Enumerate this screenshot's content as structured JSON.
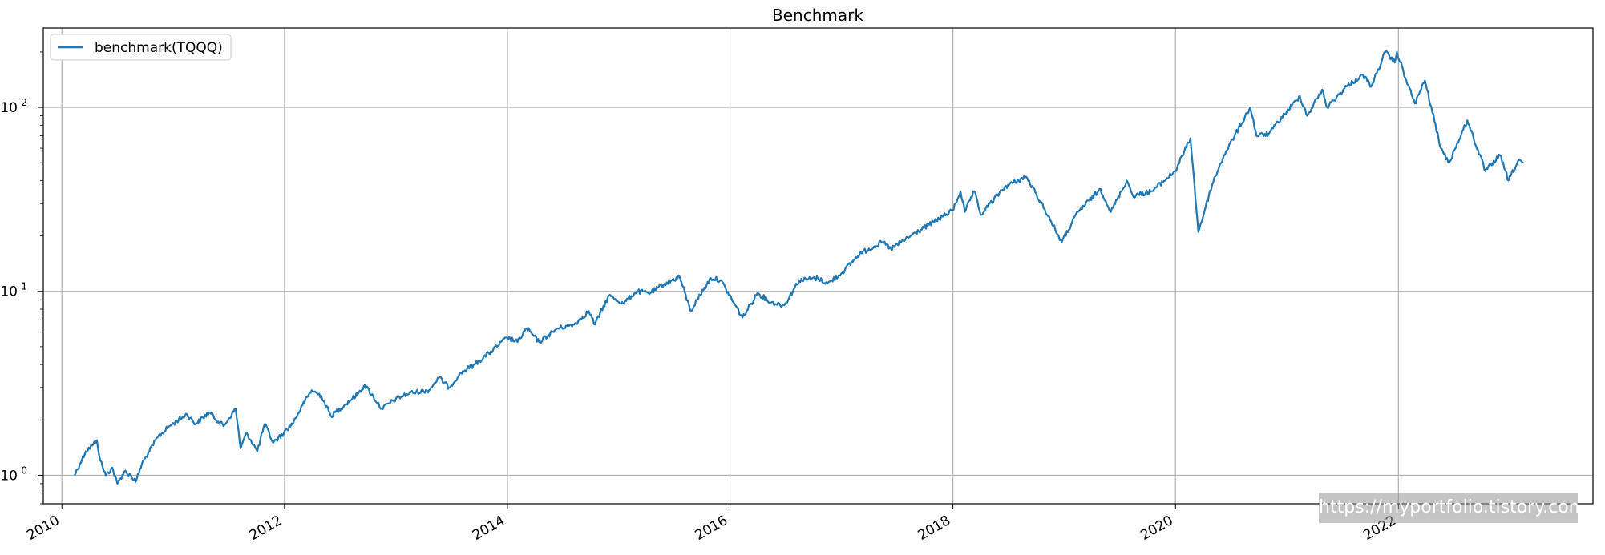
{
  "chart_data": {
    "type": "line",
    "title": "Benchmark",
    "xlabel": "",
    "ylabel": "",
    "y_scale": "log",
    "ylim": [
      0.7,
      270
    ],
    "xlim": [
      "2009-11-01",
      "2023-10-01"
    ],
    "grid": true,
    "legend_position": "top-left",
    "x_tick_labels": [
      "2010",
      "2012",
      "2014",
      "2016",
      "2018",
      "2020",
      "2022"
    ],
    "y_ticks": [
      1,
      10,
      100
    ],
    "y_tick_labels": [
      {
        "base": "10",
        "exp": "0"
      },
      {
        "base": "10",
        "exp": "1"
      },
      {
        "base": "10",
        "exp": "2"
      }
    ],
    "series": [
      {
        "name": "benchmark(TQQQ)",
        "color": "#1f77b4",
        "points": [
          [
            "2010-02-11",
            1.0
          ],
          [
            "2010-03-01",
            1.15
          ],
          [
            "2010-03-20",
            1.35
          ],
          [
            "2010-04-10",
            1.45
          ],
          [
            "2010-04-26",
            1.55
          ],
          [
            "2010-05-07",
            1.2
          ],
          [
            "2010-05-25",
            1.0
          ],
          [
            "2010-06-15",
            1.1
          ],
          [
            "2010-07-02",
            0.9
          ],
          [
            "2010-07-25",
            1.05
          ],
          [
            "2010-08-15",
            1.0
          ],
          [
            "2010-08-31",
            0.92
          ],
          [
            "2010-09-20",
            1.15
          ],
          [
            "2010-10-15",
            1.35
          ],
          [
            "2010-11-10",
            1.6
          ],
          [
            "2010-12-20",
            1.85
          ],
          [
            "2011-02-15",
            2.15
          ],
          [
            "2011-03-16",
            1.9
          ],
          [
            "2011-04-29",
            2.2
          ],
          [
            "2011-06-15",
            1.85
          ],
          [
            "2011-07-25",
            2.3
          ],
          [
            "2011-08-10",
            1.4
          ],
          [
            "2011-08-30",
            1.7
          ],
          [
            "2011-10-04",
            1.35
          ],
          [
            "2011-10-28",
            1.9
          ],
          [
            "2011-11-25",
            1.5
          ],
          [
            "2011-12-30",
            1.7
          ],
          [
            "2012-01-31",
            1.95
          ],
          [
            "2012-02-29",
            2.4
          ],
          [
            "2012-03-30",
            2.9
          ],
          [
            "2012-05-01",
            2.7
          ],
          [
            "2012-06-01",
            2.1
          ],
          [
            "2012-07-15",
            2.4
          ],
          [
            "2012-08-31",
            2.8
          ],
          [
            "2012-09-20",
            3.1
          ],
          [
            "2012-11-15",
            2.3
          ],
          [
            "2012-12-31",
            2.6
          ],
          [
            "2013-02-15",
            2.8
          ],
          [
            "2013-04-19",
            2.9
          ],
          [
            "2013-05-21",
            3.4
          ],
          [
            "2013-06-24",
            3.0
          ],
          [
            "2013-08-01",
            3.6
          ],
          [
            "2013-09-15",
            4.0
          ],
          [
            "2013-11-01",
            4.6
          ],
          [
            "2013-12-31",
            5.6
          ],
          [
            "2014-02-03",
            5.3
          ],
          [
            "2014-03-05",
            6.3
          ],
          [
            "2014-04-15",
            5.3
          ],
          [
            "2014-06-15",
            6.3
          ],
          [
            "2014-08-08",
            6.6
          ],
          [
            "2014-09-25",
            7.8
          ],
          [
            "2014-10-15",
            6.6
          ],
          [
            "2014-11-30",
            9.5
          ],
          [
            "2015-01-15",
            8.6
          ],
          [
            "2015-03-01",
            10.0
          ],
          [
            "2015-04-15",
            9.8
          ],
          [
            "2015-06-01",
            11.0
          ],
          [
            "2015-07-20",
            12.0
          ],
          [
            "2015-08-25",
            7.8
          ],
          [
            "2015-09-15",
            9.0
          ],
          [
            "2015-10-30",
            11.8
          ],
          [
            "2015-12-01",
            11.5
          ],
          [
            "2016-02-11",
            7.2
          ],
          [
            "2016-03-31",
            9.8
          ],
          [
            "2016-05-15",
            8.7
          ],
          [
            "2016-06-27",
            8.4
          ],
          [
            "2016-08-15",
            11.5
          ],
          [
            "2016-10-15",
            11.8
          ],
          [
            "2016-11-15",
            11.0
          ],
          [
            "2016-12-31",
            12.5
          ],
          [
            "2017-03-01",
            16.0
          ],
          [
            "2017-05-15",
            18.5
          ],
          [
            "2017-06-12",
            17.0
          ],
          [
            "2017-08-15",
            20.0
          ],
          [
            "2017-10-15",
            23.0
          ],
          [
            "2017-12-31",
            27.5
          ],
          [
            "2018-01-26",
            35.0
          ],
          [
            "2018-02-09",
            27.0
          ],
          [
            "2018-03-12",
            35.0
          ],
          [
            "2018-04-02",
            26.0
          ],
          [
            "2018-06-20",
            37.0
          ],
          [
            "2018-08-29",
            42.0
          ],
          [
            "2018-10-29",
            28.0
          ],
          [
            "2018-12-24",
            18.5
          ],
          [
            "2019-02-15",
            27.0
          ],
          [
            "2019-04-30",
            36.0
          ],
          [
            "2019-06-03",
            27.0
          ],
          [
            "2019-07-25",
            40.0
          ],
          [
            "2019-08-15",
            33.0
          ],
          [
            "2019-10-15",
            35.0
          ],
          [
            "2019-12-31",
            45.0
          ],
          [
            "2020-02-19",
            68.0
          ],
          [
            "2020-03-16",
            21.0
          ],
          [
            "2020-04-30",
            38.0
          ],
          [
            "2020-06-08",
            55.0
          ],
          [
            "2020-09-02",
            100.0
          ],
          [
            "2020-09-23",
            70.0
          ],
          [
            "2020-11-02",
            72.0
          ],
          [
            "2020-12-31",
            95.0
          ],
          [
            "2021-02-12",
            115.0
          ],
          [
            "2021-03-08",
            90.0
          ],
          [
            "2021-04-26",
            125.0
          ],
          [
            "2021-05-12",
            100.0
          ],
          [
            "2021-07-15",
            130.0
          ],
          [
            "2021-09-07",
            150.0
          ],
          [
            "2021-10-04",
            130.0
          ],
          [
            "2021-11-19",
            200.0
          ],
          [
            "2021-12-20",
            175.0
          ],
          [
            "2021-12-27",
            200.0
          ],
          [
            "2022-01-27",
            140.0
          ],
          [
            "2022-02-24",
            105.0
          ],
          [
            "2022-03-29",
            140.0
          ],
          [
            "2022-05-20",
            60.0
          ],
          [
            "2022-06-16",
            50.0
          ],
          [
            "2022-08-15",
            85.0
          ],
          [
            "2022-10-13",
            45.0
          ],
          [
            "2022-11-30",
            55.0
          ],
          [
            "2022-12-28",
            40.0
          ],
          [
            "2023-01-31",
            52.0
          ],
          [
            "2023-02-15",
            50.0
          ]
        ]
      }
    ]
  },
  "watermark": "https://myportfolio.tistory.com"
}
